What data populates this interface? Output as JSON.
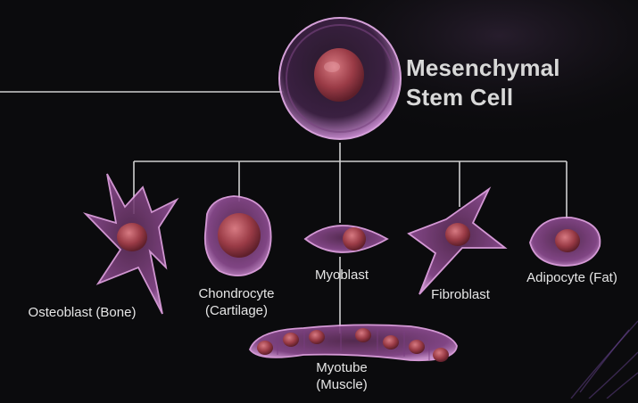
{
  "diagram": {
    "title_line1": "Mesenchymal",
    "title_line2": "Stem Cell",
    "cells": {
      "osteoblast": "Osteoblast (Bone)",
      "chondrocyte_l1": "Chondrocyte",
      "chondrocyte_l2": "(Cartilage)",
      "myoblast": "Myoblast",
      "fibroblast": "Fibroblast",
      "adipocyte": "Adipocyte (Fat)",
      "myotube_l1": "Myotube",
      "myotube_l2": "(Muscle)"
    },
    "colors": {
      "background": "#0b0b0d",
      "connector": "#cfcfcf",
      "membrane": "#b06bb8",
      "nucleus": "#9a3b46"
    }
  }
}
